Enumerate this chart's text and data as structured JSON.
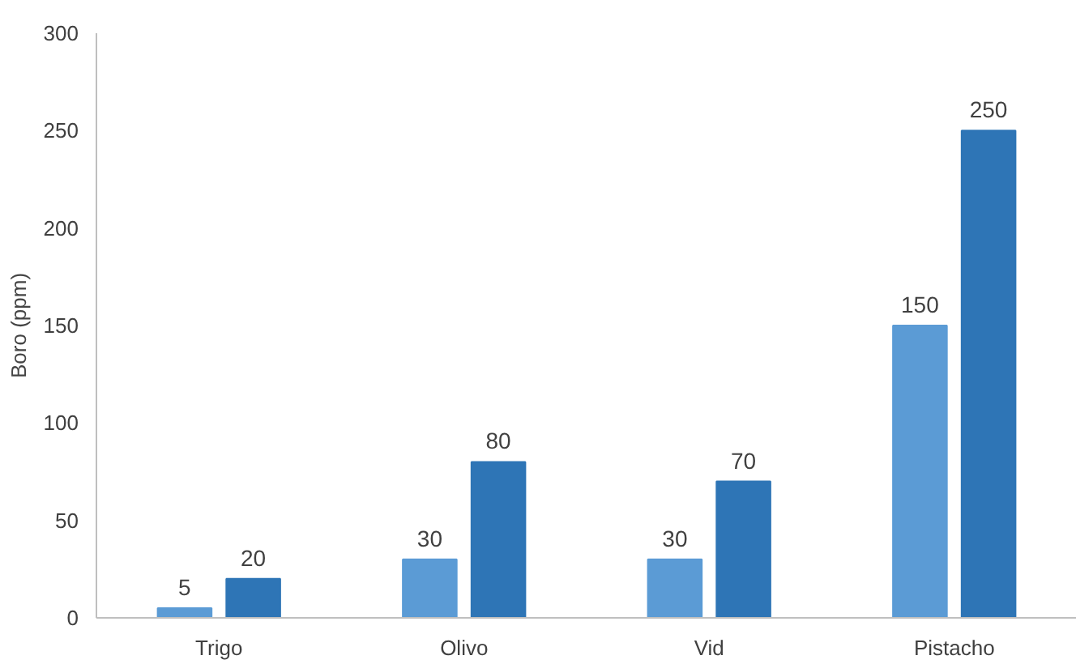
{
  "chart_data": {
    "type": "bar",
    "ylabel": "Boro (ppm)",
    "categories": [
      "Trigo",
      "Olivo",
      "Vid",
      "Pistacho"
    ],
    "series": [
      {
        "color": "#5b9bd5",
        "values": [
          5,
          30,
          30,
          150
        ]
      },
      {
        "color": "#2e75b6",
        "values": [
          20,
          80,
          70,
          250
        ]
      }
    ],
    "ylim": [
      0,
      300
    ],
    "yticks": [
      0,
      50,
      100,
      150,
      200,
      250,
      300
    ],
    "grid": false,
    "data_labels": true
  }
}
